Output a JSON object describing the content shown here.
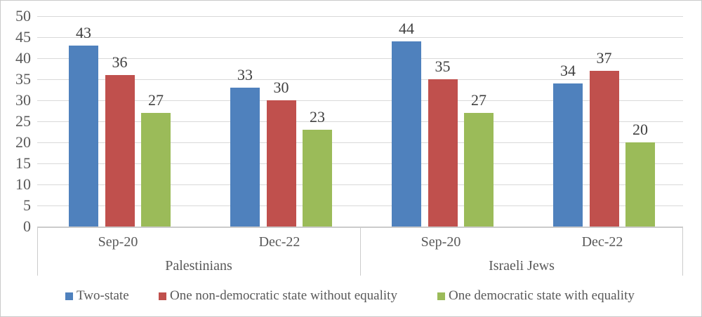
{
  "chart_data": {
    "type": "bar",
    "title": "",
    "ylim": [
      0,
      50
    ],
    "yticks": [
      0,
      5,
      10,
      15,
      20,
      25,
      30,
      35,
      40,
      45,
      50
    ],
    "grid": true,
    "legend_position": "bottom",
    "panels": [
      {
        "label": "Palestinians",
        "categories": [
          "Sep-20",
          "Dec-22"
        ]
      },
      {
        "label": "Israeli Jews",
        "categories": [
          "Sep-20",
          "Dec-22"
        ]
      }
    ],
    "column_order": [
      "Palestinians / Sep-20",
      "Palestinians / Dec-22",
      "Israeli Jews / Sep-20",
      "Israeli Jews / Dec-22"
    ],
    "series": [
      {
        "name": "Two-state",
        "color": "#4f81bd",
        "values": [
          43,
          33,
          44,
          34
        ]
      },
      {
        "name": "One non-democratic state without equality",
        "color": "#c0504d",
        "values": [
          36,
          30,
          35,
          37
        ]
      },
      {
        "name": "One democratic state with equality",
        "color": "#9bbb59",
        "values": [
          27,
          23,
          27,
          20
        ]
      }
    ],
    "colors": {
      "axis_text": "#595959",
      "data_label_text": "#3f3f3f",
      "gridline": "#d9d9d9",
      "axis_line": "#cbcbcb",
      "frame_border": "#c9c9c9",
      "background": "#ffffff"
    }
  }
}
